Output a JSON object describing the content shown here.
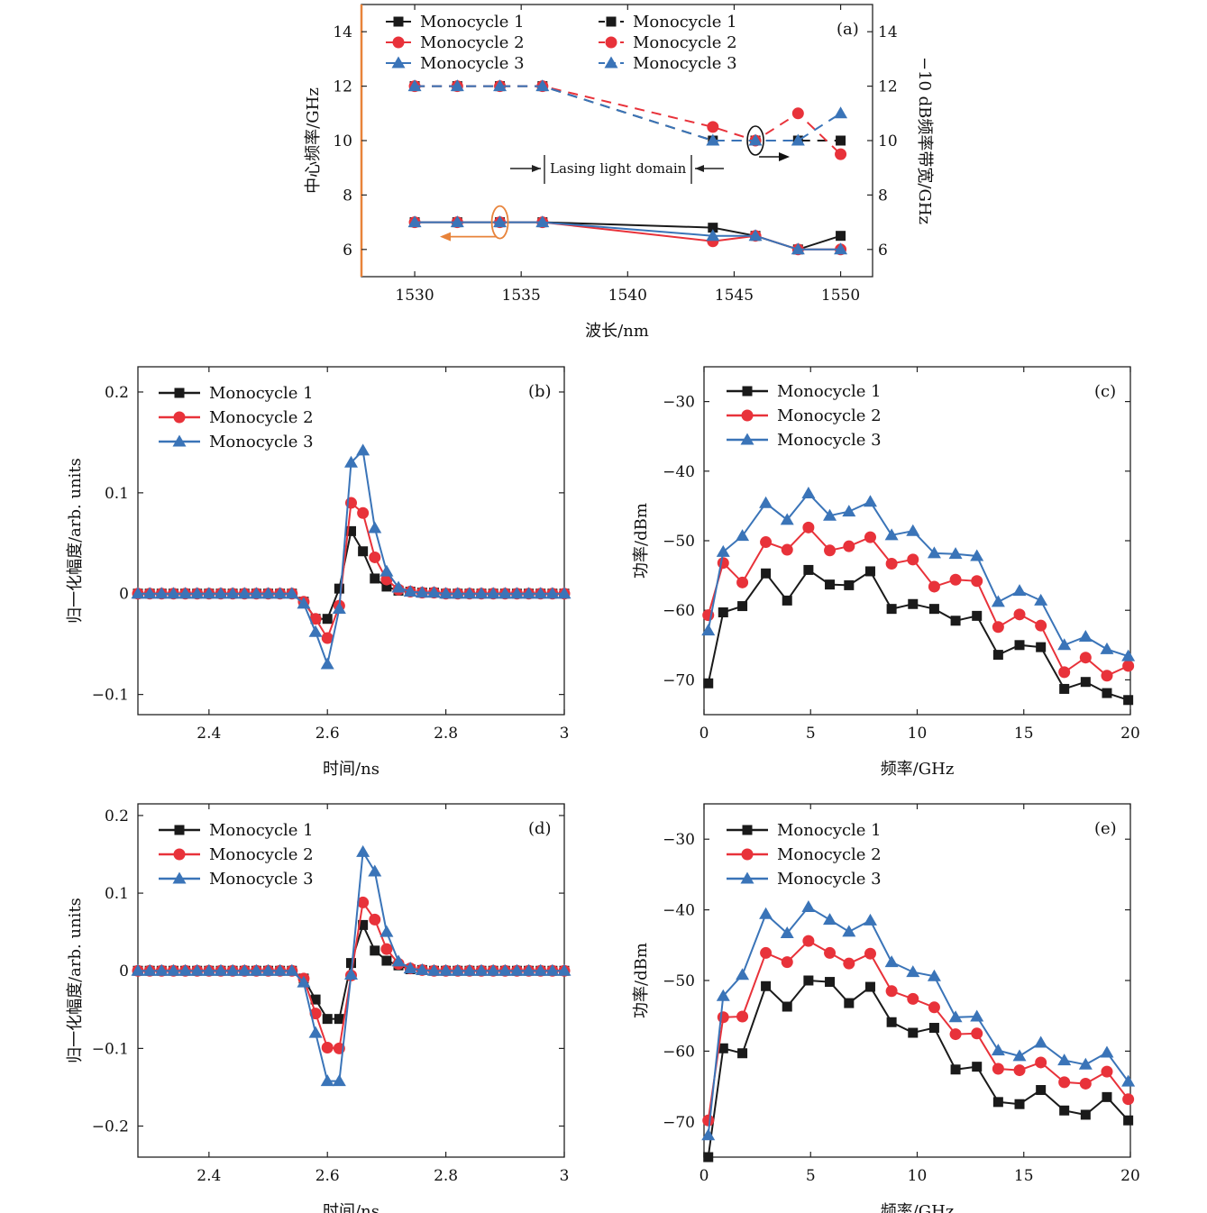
{
  "colors": {
    "black": "#1a1a1a",
    "red": "#e8323a",
    "blue": "#3a74b8",
    "orange": "#e8833a"
  },
  "chart_data": [
    {
      "id": "a",
      "type": "line",
      "panel_label": "(a)",
      "xlabel": "波长/nm",
      "ylabel": "中心频率/GHz",
      "ylabel_right": "−10 dB频率带宽/GHz",
      "xlim": [
        1527.5,
        1551.5
      ],
      "ylim": [
        5,
        15
      ],
      "ylim_right": [
        5,
        15
      ],
      "xticks": [
        1530,
        1535,
        1540,
        1545,
        1550
      ],
      "yticks": [
        6,
        8,
        10,
        12,
        14
      ],
      "x": [
        1530,
        1532,
        1534,
        1536,
        1544,
        1546,
        1548,
        1550
      ],
      "series": [
        {
          "name": "Monocycle 1",
          "axis": "left",
          "style": "solid",
          "color": "black",
          "marker": "square",
          "values": [
            7,
            7,
            7,
            7,
            6.8,
            6.5,
            6.0,
            6.5
          ]
        },
        {
          "name": "Monocycle 2",
          "axis": "left",
          "style": "solid",
          "color": "red",
          "marker": "circle",
          "values": [
            7,
            7,
            7,
            7,
            6.3,
            6.5,
            6.0,
            6.0
          ]
        },
        {
          "name": "Monocycle 3",
          "axis": "left",
          "style": "solid",
          "color": "blue",
          "marker": "triangle",
          "values": [
            7,
            7,
            7,
            7,
            6.5,
            6.5,
            6.0,
            6.0
          ]
        },
        {
          "name": "Monocycle 1",
          "axis": "right",
          "style": "dash",
          "color": "black",
          "marker": "square",
          "values": [
            12,
            12,
            12,
            12,
            10,
            10,
            10,
            10
          ]
        },
        {
          "name": "Monocycle 2",
          "axis": "right",
          "style": "dash",
          "color": "red",
          "marker": "circle",
          "values": [
            12,
            12,
            12,
            12,
            10.5,
            10,
            11,
            9.5
          ]
        },
        {
          "name": "Monocycle 3",
          "axis": "right",
          "style": "dash",
          "color": "blue",
          "marker": "triangle",
          "values": [
            12,
            12,
            12,
            12,
            10,
            10,
            10,
            11
          ]
        }
      ],
      "annotation": "Lasing light domain",
      "legend_position": "top"
    },
    {
      "id": "b",
      "type": "line",
      "panel_label": "(b)",
      "xlabel": "时间/ns",
      "ylabel": "归一化幅度/arb. units",
      "xlim": [
        2.28,
        3.0
      ],
      "ylim": [
        -0.12,
        0.225
      ],
      "xticks": [
        2.4,
        2.6,
        2.8,
        3.0
      ],
      "ytick_values": [
        -0.1,
        0,
        0.1,
        0.2
      ],
      "ytick_labels": [
        "−0.1",
        "0",
        "0.1",
        "0.2"
      ],
      "x": [
        2.28,
        2.3,
        2.32,
        2.34,
        2.36,
        2.38,
        2.4,
        2.42,
        2.44,
        2.46,
        2.48,
        2.5,
        2.52,
        2.54,
        2.56,
        2.58,
        2.6,
        2.62,
        2.64,
        2.66,
        2.68,
        2.7,
        2.72,
        2.74,
        2.76,
        2.78,
        2.8,
        2.82,
        2.84,
        2.86,
        2.88,
        2.9,
        2.92,
        2.94,
        2.96,
        2.98,
        3.0
      ],
      "series": [
        {
          "name": "Monocycle 1",
          "color": "black",
          "marker": "square",
          "values": [
            0,
            0,
            0,
            0,
            0,
            0,
            0,
            0,
            0,
            0,
            0,
            0,
            0,
            0,
            -0.008,
            -0.025,
            -0.025,
            0.005,
            0.062,
            0.042,
            0.015,
            0.007,
            0.003,
            0.002,
            0.001,
            0.001,
            0,
            0,
            0,
            0,
            0,
            0,
            0,
            0,
            0,
            0,
            0
          ]
        },
        {
          "name": "Monocycle 2",
          "color": "red",
          "marker": "circle",
          "values": [
            0,
            0,
            0,
            0,
            0,
            0,
            0,
            0,
            0,
            0,
            0,
            0,
            0,
            0,
            -0.008,
            -0.025,
            -0.044,
            -0.012,
            0.09,
            0.08,
            0.036,
            0.014,
            0.004,
            0.002,
            0.001,
            0.001,
            0,
            0,
            0,
            0,
            0,
            0,
            0,
            0,
            0,
            0,
            0
          ]
        },
        {
          "name": "Monocycle 3",
          "color": "blue",
          "marker": "triangle",
          "values": [
            0,
            0,
            0,
            0,
            0,
            0,
            0,
            0,
            0,
            0,
            0,
            0,
            0,
            0,
            -0.01,
            -0.038,
            -0.07,
            -0.015,
            0.13,
            0.142,
            0.065,
            0.022,
            0.006,
            0.002,
            0.001,
            0.001,
            0,
            0,
            0,
            0,
            0,
            0,
            0,
            0,
            0,
            0,
            0
          ]
        }
      ],
      "legend_position": "top-left"
    },
    {
      "id": "c",
      "type": "line",
      "panel_label": "(c)",
      "xlabel": "频率/GHz",
      "ylabel": "功率/dBm",
      "xlim": [
        0,
        20
      ],
      "ylim": [
        -75,
        -25
      ],
      "xticks": [
        0,
        5,
        10,
        15,
        20
      ],
      "ytick_values": [
        -70,
        -60,
        -50,
        -40,
        -30
      ],
      "ytick_labels": [
        "−70",
        "−60",
        "−50",
        "−40",
        "−30"
      ],
      "x": [
        0.2,
        0.9,
        1.8,
        2.9,
        3.9,
        4.9,
        5.9,
        6.8,
        7.8,
        8.8,
        9.8,
        10.8,
        11.8,
        12.8,
        13.8,
        14.8,
        15.8,
        16.9,
        17.9,
        18.9,
        19.9
      ],
      "series": [
        {
          "name": "Monocycle 1",
          "color": "black",
          "marker": "square",
          "values": [
            -70.5,
            -60.3,
            -59.4,
            -54.7,
            -58.6,
            -54.2,
            -56.3,
            -56.4,
            -54.4,
            -59.8,
            -59.1,
            -59.8,
            -61.5,
            -60.8,
            -66.4,
            -65.0,
            -65.3,
            -71.3,
            -70.3,
            -71.9,
            -72.9
          ]
        },
        {
          "name": "Monocycle 2",
          "color": "red",
          "marker": "circle",
          "values": [
            -60.7,
            -53.2,
            -56.0,
            -50.2,
            -51.3,
            -48.1,
            -51.4,
            -50.8,
            -49.5,
            -53.3,
            -52.7,
            -56.6,
            -55.6,
            -55.8,
            -62.4,
            -60.6,
            -62.2,
            -68.9,
            -66.8,
            -69.4,
            -68.0
          ]
        },
        {
          "name": "Monocycle 3",
          "color": "blue",
          "marker": "triangle",
          "values": [
            -62.9,
            -51.6,
            -49.3,
            -44.6,
            -47.0,
            -43.2,
            -46.4,
            -45.8,
            -44.4,
            -49.2,
            -48.6,
            -51.8,
            -51.9,
            -52.2,
            -58.8,
            -57.2,
            -58.6,
            -65.0,
            -63.8,
            -65.6,
            -66.6
          ]
        }
      ],
      "legend_position": "top-left"
    },
    {
      "id": "d",
      "type": "line",
      "panel_label": "(d)",
      "xlabel": "时间/ns",
      "ylabel": "归一化幅度/arb. units",
      "xlim": [
        2.28,
        3.0
      ],
      "ylim": [
        -0.24,
        0.215
      ],
      "xticks": [
        2.4,
        2.6,
        2.8,
        3.0
      ],
      "ytick_values": [
        -0.2,
        -0.1,
        0,
        0.1,
        0.2
      ],
      "ytick_labels": [
        "−0.2",
        "−0.1",
        "0",
        "0.1",
        "0.2"
      ],
      "x": [
        2.28,
        2.3,
        2.32,
        2.34,
        2.36,
        2.38,
        2.4,
        2.42,
        2.44,
        2.46,
        2.48,
        2.5,
        2.52,
        2.54,
        2.56,
        2.58,
        2.6,
        2.62,
        2.64,
        2.66,
        2.68,
        2.7,
        2.72,
        2.74,
        2.76,
        2.78,
        2.8,
        2.82,
        2.84,
        2.86,
        2.88,
        2.9,
        2.92,
        2.94,
        2.96,
        2.98,
        3.0
      ],
      "series": [
        {
          "name": "Monocycle 1",
          "color": "black",
          "marker": "square",
          "values": [
            0,
            0,
            0,
            0,
            0,
            0,
            0,
            0,
            0,
            0,
            0,
            0,
            0,
            0,
            -0.01,
            -0.037,
            -0.062,
            -0.062,
            0.01,
            0.059,
            0.026,
            0.013,
            0.007,
            0.002,
            0.001,
            0,
            0,
            0,
            0,
            0,
            0,
            0,
            0,
            0,
            0,
            0,
            0
          ]
        },
        {
          "name": "Monocycle 2",
          "color": "red",
          "marker": "circle",
          "values": [
            0,
            0,
            0,
            0,
            0,
            0,
            0,
            0,
            0,
            0,
            0,
            0,
            0,
            0,
            -0.01,
            -0.055,
            -0.099,
            -0.1,
            -0.006,
            0.088,
            0.066,
            0.028,
            0.009,
            0.003,
            0.001,
            0,
            0,
            0,
            0,
            0,
            0,
            0,
            0,
            0,
            0,
            0,
            0
          ]
        },
        {
          "name": "Monocycle 3",
          "color": "blue",
          "marker": "triangle",
          "values": [
            0,
            0,
            0,
            0,
            0,
            0,
            0,
            0,
            0,
            0,
            0,
            0,
            0,
            0,
            -0.015,
            -0.08,
            -0.142,
            -0.142,
            -0.005,
            0.153,
            0.128,
            0.05,
            0.012,
            0.003,
            0.001,
            0,
            0,
            0,
            0,
            0,
            0,
            0,
            0,
            0,
            0,
            0,
            0
          ]
        }
      ],
      "legend_position": "top-left"
    },
    {
      "id": "e",
      "type": "line",
      "panel_label": "(e)",
      "xlabel": "频率/GHz",
      "ylabel": "功率/dBm",
      "xlim": [
        0,
        20
      ],
      "ylim": [
        -75,
        -25
      ],
      "xticks": [
        0,
        5,
        10,
        15,
        20
      ],
      "ytick_values": [
        -70,
        -60,
        -50,
        -40,
        -30
      ],
      "ytick_labels": [
        "−70",
        "−60",
        "−50",
        "−40",
        "−30"
      ],
      "x": [
        0.2,
        0.9,
        1.8,
        2.9,
        3.9,
        4.9,
        5.9,
        6.8,
        7.8,
        8.8,
        9.8,
        10.8,
        11.8,
        12.8,
        13.8,
        14.8,
        15.8,
        16.9,
        17.9,
        18.9,
        19.9
      ],
      "series": [
        {
          "name": "Monocycle 1",
          "color": "black",
          "marker": "square",
          "values": [
            -75,
            -59.6,
            -60.3,
            -50.8,
            -53.7,
            -50.0,
            -50.2,
            -53.2,
            -50.9,
            -55.9,
            -57.4,
            -56.7,
            -62.6,
            -62.2,
            -67.2,
            -67.5,
            -65.5,
            -68.4,
            -69.0,
            -66.5,
            -69.8
          ]
        },
        {
          "name": "Monocycle 2",
          "color": "red",
          "marker": "circle",
          "values": [
            -69.8,
            -55.2,
            -55.1,
            -46.1,
            -47.4,
            -44.4,
            -46.1,
            -47.6,
            -46.2,
            -51.5,
            -52.6,
            -53.8,
            -57.6,
            -57.5,
            -62.5,
            -62.7,
            -61.6,
            -64.4,
            -64.6,
            -62.9,
            -66.8
          ]
        },
        {
          "name": "Monocycle 3",
          "color": "blue",
          "marker": "triangle",
          "values": [
            -71.9,
            -52.2,
            -49.2,
            -40.6,
            -43.3,
            -39.6,
            -41.4,
            -43.1,
            -41.5,
            -47.4,
            -48.8,
            -49.4,
            -55.2,
            -55.1,
            -59.9,
            -60.7,
            -58.8,
            -61.3,
            -61.9,
            -60.2,
            -64.3
          ]
        }
      ],
      "legend_position": "top-left"
    }
  ]
}
